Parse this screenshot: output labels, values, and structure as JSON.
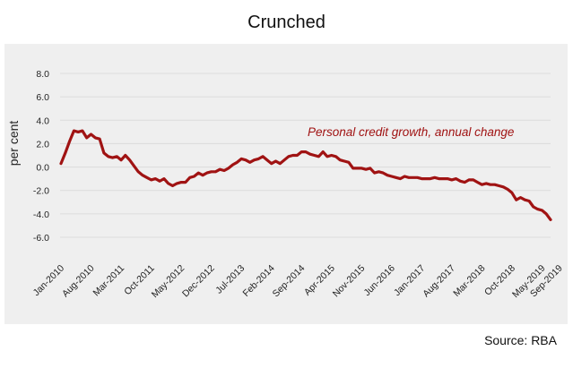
{
  "title": "Crunched",
  "source": "Source: RBA",
  "chart_data": {
    "type": "line",
    "ylabel": "per cent",
    "yticks": [
      "8.0",
      "6.0",
      "4.0",
      "2.0",
      "0.0",
      "-2.0",
      "-4.0",
      "-6.0"
    ],
    "ylim": [
      -6,
      8
    ],
    "xticks": [
      "Jan-2010",
      "Aug-2010",
      "Mar-2011",
      "Oct-2011",
      "May-2012",
      "Dec-2012",
      "Jul-2013",
      "Feb-2014",
      "Sep-2014",
      "Apr-2015",
      "Nov-2015",
      "Jun-2016",
      "Jan-2017",
      "Aug-2017",
      "Mar-2018",
      "Oct-2018",
      "May-2019",
      "Sep-2019"
    ],
    "annotation": "Personal credit growth, annual change",
    "colors": {
      "line": "#a01313",
      "annotation": "#a01313"
    },
    "grid": true,
    "series": [
      {
        "name": "",
        "x_start": "Jan-2010",
        "frequency": "monthly",
        "values": [
          0.3,
          1.2,
          2.2,
          3.1,
          3.0,
          3.1,
          2.5,
          2.8,
          2.5,
          2.4,
          1.2,
          0.9,
          0.8,
          0.9,
          0.6,
          1.0,
          0.6,
          0.1,
          -0.4,
          -0.7,
          -0.9,
          -1.1,
          -1.0,
          -1.2,
          -1.0,
          -1.4,
          -1.6,
          -1.4,
          -1.3,
          -1.3,
          -0.9,
          -0.8,
          -0.5,
          -0.7,
          -0.5,
          -0.4,
          -0.4,
          -0.2,
          -0.3,
          -0.1,
          0.2,
          0.4,
          0.7,
          0.6,
          0.4,
          0.6,
          0.7,
          0.9,
          0.6,
          0.3,
          0.5,
          0.3,
          0.6,
          0.9,
          1.0,
          1.0,
          1.3,
          1.3,
          1.1,
          1.0,
          0.9,
          1.3,
          0.9,
          1.0,
          0.9,
          0.6,
          0.5,
          0.4,
          -0.1,
          -0.1,
          -0.1,
          -0.2,
          -0.1,
          -0.5,
          -0.4,
          -0.5,
          -0.7,
          -0.8,
          -0.9,
          -1.0,
          -0.8,
          -0.9,
          -0.9,
          -0.9,
          -1.0,
          -1.0,
          -1.0,
          -0.9,
          -1.0,
          -1.0,
          -1.0,
          -1.1,
          -1.0,
          -1.2,
          -1.3,
          -1.1,
          -1.1,
          -1.3,
          -1.5,
          -1.4,
          -1.5,
          -1.5,
          -1.6,
          -1.7,
          -1.9,
          -2.2,
          -2.8,
          -2.6,
          -2.8,
          -2.9,
          -3.4,
          -3.6,
          -3.7,
          -4.0,
          -4.5
        ]
      }
    ]
  }
}
